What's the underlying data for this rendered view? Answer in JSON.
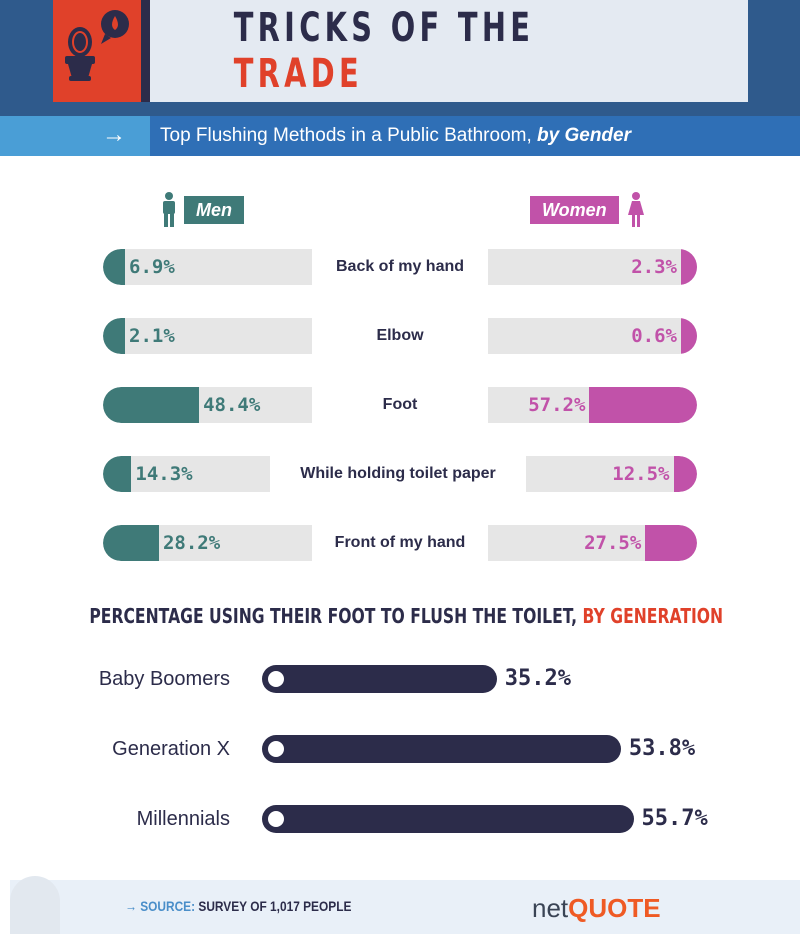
{
  "header": {
    "title_main": "TRICKS OF THE",
    "title_accent": "TRADE",
    "subtitle": "Top Flushing Methods in a Public Bathroom, ",
    "subtitle_bold": "by Gender",
    "arrow": "→"
  },
  "colors": {
    "men": "#3f7a78",
    "women": "#c152a9",
    "track": "#e6e6e6",
    "navy": "#2c2c4a",
    "accent": "#e0412a"
  },
  "chart_data": [
    {
      "type": "bar",
      "title": "Top Flushing Methods in a Public Bathroom, by Gender",
      "legend": [
        "Men",
        "Women"
      ],
      "categories": [
        "Back of my hand",
        "Elbow",
        "Foot",
        "While holding toilet paper",
        "Front of my hand"
      ],
      "series": [
        {
          "name": "Men",
          "values": [
            6.9,
            2.1,
            48.4,
            14.3,
            28.2
          ],
          "labels": [
            "6.9%",
            "2.1%",
            "48.4%",
            "14.3%",
            "28.2%"
          ]
        },
        {
          "name": "Women",
          "values": [
            2.3,
            0.6,
            57.2,
            12.5,
            27.5
          ],
          "labels": [
            "2.3%",
            "0.6%",
            "57.2%",
            "12.5%",
            "27.5%"
          ]
        }
      ],
      "ylim": [
        0,
        100
      ]
    },
    {
      "type": "bar",
      "title_main": "PERCENTAGE USING THEIR FOOT TO FLUSH THE TOILET, ",
      "title_accent": "BY GENERATION",
      "categories": [
        "Baby Boomers",
        "Generation X",
        "Millennials"
      ],
      "values": [
        35.2,
        53.8,
        55.7
      ],
      "labels": [
        "35.2%",
        "53.8%",
        "55.7%"
      ]
    }
  ],
  "footer": {
    "arrow": "→",
    "source_label": "SOURCE:",
    "source_text": "SURVEY OF 1,017 PEOPLE",
    "logo_a": "net",
    "logo_b": "QUOTE"
  }
}
